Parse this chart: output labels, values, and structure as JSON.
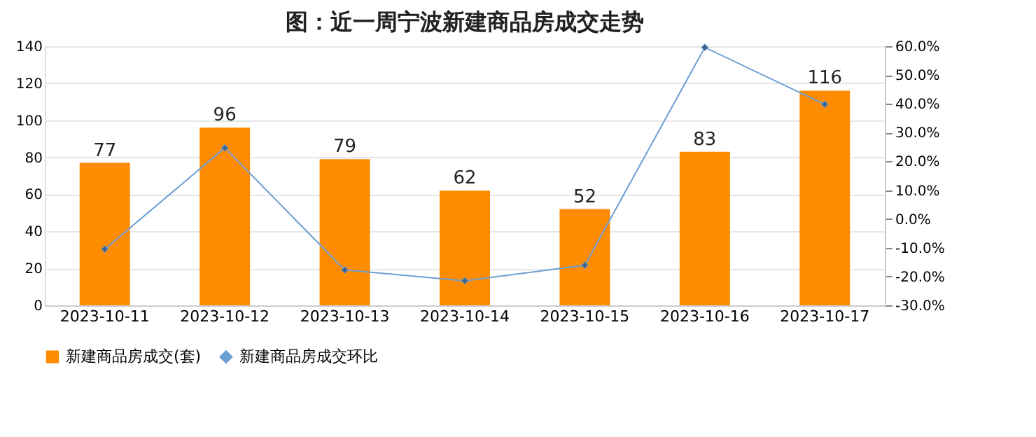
{
  "chart_data": {
    "type": "bar",
    "title": "图：近一周宁波新建商品房成交走势",
    "categories": [
      "2023-10-11",
      "2023-10-12",
      "2023-10-13",
      "2023-10-14",
      "2023-10-15",
      "2023-10-16",
      "2023-10-17"
    ],
    "series": [
      {
        "name": "新建商品房成交(套)",
        "color": "#ff8c00",
        "values": [
          77,
          96,
          79,
          62,
          52,
          83,
          116
        ],
        "value_labels": [
          "77",
          "96",
          "79",
          "62",
          "52",
          "83",
          "116"
        ]
      },
      {
        "name": "新建商品房成交环比",
        "type": "line",
        "axis": "y2",
        "color": "#6b9fd4",
        "marker": "diamond",
        "values": [
          -10.5,
          24.7,
          -17.7,
          -21.5,
          -16.1,
          59.6,
          39.8
        ]
      }
    ],
    "ylim": [
      0,
      140
    ],
    "yticks": [
      0,
      20,
      40,
      60,
      80,
      100,
      120,
      140
    ],
    "y2lim": [
      -30,
      60
    ],
    "y2ticks": [
      {
        "value": -30,
        "label": "-30.0%"
      },
      {
        "value": -20,
        "label": "-20.0%"
      },
      {
        "value": -10,
        "label": "-10.0%"
      },
      {
        "value": 0,
        "label": "0.0%"
      },
      {
        "value": 10,
        "label": "10.0%"
      },
      {
        "value": 20,
        "label": "20.0%"
      },
      {
        "value": 30,
        "label": "30.0%"
      },
      {
        "value": 40,
        "label": "40.0%"
      },
      {
        "value": 50,
        "label": "50.0%"
      },
      {
        "value": 60,
        "label": "60.0%"
      }
    ],
    "grid": "y",
    "legend": "bottom"
  }
}
